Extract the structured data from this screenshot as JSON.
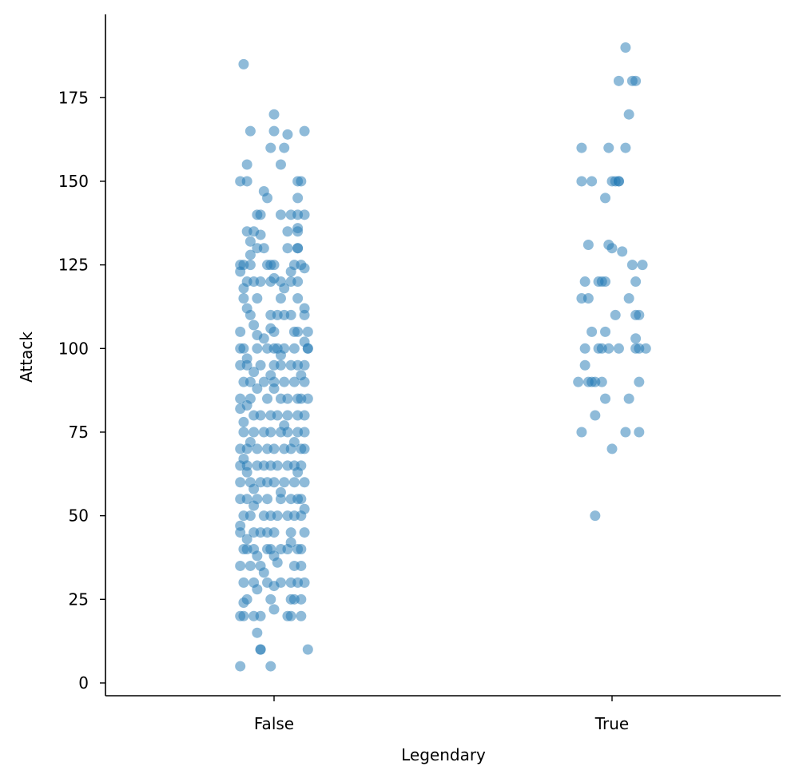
{
  "chart_data": {
    "type": "scatter",
    "subtype": "strip",
    "title": "",
    "xlabel": "Legendary",
    "ylabel": "Attack",
    "categories": [
      "False",
      "True"
    ],
    "yticks": [
      0,
      25,
      50,
      75,
      100,
      125,
      150,
      175
    ],
    "ylim": [
      -4,
      199
    ],
    "grid": false,
    "legend": null,
    "marker_color": "#1f77b4",
    "marker_alpha": 0.5,
    "series": [
      {
        "name": "False",
        "points": [
          [
            -0.09,
            185
          ],
          [
            0.0,
            170
          ],
          [
            -0.07,
            165
          ],
          [
            0.0,
            165
          ],
          [
            0.09,
            165
          ],
          [
            0.04,
            164
          ],
          [
            -0.01,
            160
          ],
          [
            0.03,
            160
          ],
          [
            -0.08,
            155
          ],
          [
            0.02,
            155
          ],
          [
            -0.1,
            150
          ],
          [
            -0.08,
            150
          ],
          [
            0.07,
            150
          ],
          [
            0.08,
            150
          ],
          [
            -0.03,
            147
          ],
          [
            -0.02,
            145
          ],
          [
            0.07,
            145
          ],
          [
            -0.05,
            140
          ],
          [
            -0.04,
            140
          ],
          [
            0.02,
            140
          ],
          [
            0.05,
            140
          ],
          [
            0.07,
            140
          ],
          [
            0.09,
            140
          ],
          [
            -0.08,
            135
          ],
          [
            -0.06,
            135
          ],
          [
            0.04,
            135
          ],
          [
            0.07,
            135
          ],
          [
            0.07,
            136
          ],
          [
            -0.07,
            132
          ],
          [
            -0.04,
            134
          ],
          [
            -0.05,
            130
          ],
          [
            -0.03,
            130
          ],
          [
            0.04,
            130
          ],
          [
            0.07,
            130
          ],
          [
            0.07,
            130
          ],
          [
            -0.07,
            128
          ],
          [
            -0.1,
            125
          ],
          [
            -0.09,
            125
          ],
          [
            -0.02,
            125
          ],
          [
            -0.01,
            125
          ],
          [
            0.0,
            125
          ],
          [
            0.06,
            125
          ],
          [
            0.08,
            125
          ],
          [
            -0.07,
            125
          ],
          [
            -0.1,
            123
          ],
          [
            0.05,
            123
          ],
          [
            0.09,
            124
          ],
          [
            -0.08,
            120
          ],
          [
            -0.06,
            120
          ],
          [
            -0.04,
            120
          ],
          [
            -0.01,
            120
          ],
          [
            0.02,
            120
          ],
          [
            0.05,
            120
          ],
          [
            0.07,
            120
          ],
          [
            -0.09,
            118
          ],
          [
            0.03,
            118
          ],
          [
            0.0,
            121
          ],
          [
            -0.09,
            115
          ],
          [
            -0.05,
            115
          ],
          [
            0.02,
            115
          ],
          [
            0.07,
            115
          ],
          [
            -0.08,
            112
          ],
          [
            0.09,
            112
          ],
          [
            -0.07,
            110
          ],
          [
            -0.01,
            110
          ],
          [
            0.01,
            110
          ],
          [
            0.03,
            110
          ],
          [
            0.05,
            110
          ],
          [
            0.09,
            110
          ],
          [
            -0.06,
            107
          ],
          [
            -0.01,
            106
          ],
          [
            0.0,
            105
          ],
          [
            0.06,
            105
          ],
          [
            0.07,
            105
          ],
          [
            -0.1,
            105
          ],
          [
            0.1,
            105
          ],
          [
            0.09,
            102
          ],
          [
            -0.05,
            104
          ],
          [
            -0.03,
            103
          ],
          [
            -0.1,
            100
          ],
          [
            -0.09,
            100
          ],
          [
            -0.05,
            100
          ],
          [
            -0.02,
            100
          ],
          [
            0.0,
            100
          ],
          [
            0.01,
            100
          ],
          [
            0.03,
            100
          ],
          [
            0.06,
            100
          ],
          [
            0.1,
            100
          ],
          [
            0.1,
            100
          ],
          [
            -0.08,
            97
          ],
          [
            0.02,
            98
          ],
          [
            -0.1,
            95
          ],
          [
            -0.08,
            95
          ],
          [
            -0.04,
            95
          ],
          [
            0.0,
            95
          ],
          [
            0.02,
            95
          ],
          [
            0.05,
            95
          ],
          [
            0.07,
            95
          ],
          [
            0.09,
            95
          ],
          [
            -0.06,
            93
          ],
          [
            -0.01,
            92
          ],
          [
            0.08,
            92
          ],
          [
            -0.09,
            90
          ],
          [
            -0.07,
            90
          ],
          [
            -0.03,
            90
          ],
          [
            0.0,
            90
          ],
          [
            0.03,
            90
          ],
          [
            0.06,
            90
          ],
          [
            0.09,
            90
          ],
          [
            -0.05,
            88
          ],
          [
            0.0,
            88
          ],
          [
            -0.1,
            85
          ],
          [
            -0.07,
            85
          ],
          [
            -0.02,
            85
          ],
          [
            0.02,
            85
          ],
          [
            0.04,
            85
          ],
          [
            0.07,
            85
          ],
          [
            0.08,
            85
          ],
          [
            0.1,
            85
          ],
          [
            -0.08,
            83
          ],
          [
            -0.1,
            82
          ],
          [
            -0.06,
            80
          ],
          [
            -0.04,
            80
          ],
          [
            -0.01,
            80
          ],
          [
            0.01,
            80
          ],
          [
            0.04,
            80
          ],
          [
            0.07,
            80
          ],
          [
            0.09,
            80
          ],
          [
            -0.09,
            78
          ],
          [
            0.03,
            77
          ],
          [
            -0.09,
            75
          ],
          [
            -0.06,
            75
          ],
          [
            -0.03,
            75
          ],
          [
            -0.01,
            75
          ],
          [
            0.02,
            75
          ],
          [
            0.04,
            75
          ],
          [
            0.07,
            75
          ],
          [
            0.09,
            75
          ],
          [
            -0.07,
            72
          ],
          [
            0.06,
            72
          ],
          [
            -0.1,
            70
          ],
          [
            -0.08,
            70
          ],
          [
            -0.05,
            70
          ],
          [
            -0.02,
            70
          ],
          [
            0.0,
            70
          ],
          [
            0.03,
            70
          ],
          [
            0.05,
            70
          ],
          [
            0.08,
            70
          ],
          [
            0.09,
            70
          ],
          [
            -0.09,
            67
          ],
          [
            -0.1,
            65
          ],
          [
            -0.08,
            65
          ],
          [
            -0.05,
            65
          ],
          [
            -0.03,
            65
          ],
          [
            -0.01,
            65
          ],
          [
            0.01,
            65
          ],
          [
            0.04,
            65
          ],
          [
            0.06,
            65
          ],
          [
            0.08,
            65
          ],
          [
            -0.08,
            63
          ],
          [
            0.07,
            63
          ],
          [
            -0.1,
            60
          ],
          [
            -0.07,
            60
          ],
          [
            -0.04,
            60
          ],
          [
            -0.02,
            60
          ],
          [
            0.0,
            60
          ],
          [
            0.03,
            60
          ],
          [
            0.06,
            60
          ],
          [
            0.09,
            60
          ],
          [
            -0.06,
            58
          ],
          [
            0.02,
            57
          ],
          [
            -0.1,
            55
          ],
          [
            -0.08,
            55
          ],
          [
            -0.05,
            55
          ],
          [
            -0.02,
            55
          ],
          [
            0.02,
            55
          ],
          [
            0.05,
            55
          ],
          [
            0.07,
            55
          ],
          [
            0.08,
            55
          ],
          [
            -0.06,
            53
          ],
          [
            0.09,
            52
          ],
          [
            -0.09,
            50
          ],
          [
            -0.07,
            50
          ],
          [
            -0.03,
            50
          ],
          [
            -0.01,
            50
          ],
          [
            0.01,
            50
          ],
          [
            0.04,
            50
          ],
          [
            0.06,
            50
          ],
          [
            0.08,
            50
          ],
          [
            -0.1,
            47
          ],
          [
            -0.1,
            45
          ],
          [
            -0.06,
            45
          ],
          [
            -0.04,
            45
          ],
          [
            -0.02,
            45
          ],
          [
            0.0,
            45
          ],
          [
            0.05,
            45
          ],
          [
            0.09,
            45
          ],
          [
            -0.08,
            43
          ],
          [
            0.05,
            42
          ],
          [
            -0.09,
            40
          ],
          [
            -0.08,
            40
          ],
          [
            -0.06,
            40
          ],
          [
            -0.02,
            40
          ],
          [
            -0.01,
            40
          ],
          [
            0.02,
            40
          ],
          [
            0.04,
            40
          ],
          [
            0.07,
            40
          ],
          [
            0.08,
            40
          ],
          [
            -0.05,
            38
          ],
          [
            0.0,
            38
          ],
          [
            -0.1,
            35
          ],
          [
            -0.07,
            35
          ],
          [
            -0.04,
            35
          ],
          [
            0.01,
            36
          ],
          [
            0.06,
            35
          ],
          [
            0.08,
            35
          ],
          [
            -0.03,
            33
          ],
          [
            -0.09,
            30
          ],
          [
            -0.06,
            30
          ],
          [
            -0.02,
            30
          ],
          [
            0.02,
            30
          ],
          [
            0.05,
            30
          ],
          [
            0.07,
            30
          ],
          [
            0.09,
            30
          ],
          [
            -0.05,
            28
          ],
          [
            0.0,
            29
          ],
          [
            -0.08,
            25
          ],
          [
            -0.09,
            24
          ],
          [
            0.05,
            25
          ],
          [
            0.06,
            25
          ],
          [
            0.08,
            25
          ],
          [
            -0.01,
            25
          ],
          [
            0.0,
            22
          ],
          [
            -0.1,
            20
          ],
          [
            -0.09,
            20
          ],
          [
            -0.06,
            20
          ],
          [
            -0.04,
            20
          ],
          [
            0.04,
            20
          ],
          [
            0.08,
            20
          ],
          [
            0.05,
            20
          ],
          [
            -0.05,
            15
          ],
          [
            -0.04,
            10
          ],
          [
            -0.04,
            10
          ],
          [
            0.1,
            10
          ],
          [
            -0.1,
            5
          ],
          [
            -0.01,
            5
          ]
        ]
      },
      {
        "name": "True",
        "points": [
          [
            0.04,
            190
          ],
          [
            0.02,
            180
          ],
          [
            0.06,
            180
          ],
          [
            0.07,
            180
          ],
          [
            0.05,
            170
          ],
          [
            -0.09,
            160
          ],
          [
            -0.01,
            160
          ],
          [
            0.04,
            160
          ],
          [
            -0.09,
            150
          ],
          [
            -0.06,
            150
          ],
          [
            0.0,
            150
          ],
          [
            0.01,
            150
          ],
          [
            0.02,
            150
          ],
          [
            0.02,
            150
          ],
          [
            -0.02,
            145
          ],
          [
            -0.07,
            131
          ],
          [
            -0.01,
            131
          ],
          [
            0.0,
            130
          ],
          [
            0.03,
            129
          ],
          [
            0.06,
            125
          ],
          [
            0.09,
            125
          ],
          [
            -0.08,
            120
          ],
          [
            -0.04,
            120
          ],
          [
            -0.03,
            120
          ],
          [
            -0.02,
            120
          ],
          [
            0.07,
            120
          ],
          [
            -0.09,
            115
          ],
          [
            -0.07,
            115
          ],
          [
            0.05,
            115
          ],
          [
            0.01,
            110
          ],
          [
            0.07,
            110
          ],
          [
            0.08,
            110
          ],
          [
            -0.06,
            105
          ],
          [
            -0.02,
            105
          ],
          [
            0.07,
            103
          ],
          [
            -0.08,
            100
          ],
          [
            -0.03,
            100
          ],
          [
            -0.04,
            100
          ],
          [
            -0.01,
            100
          ],
          [
            0.02,
            100
          ],
          [
            0.07,
            100
          ],
          [
            0.08,
            100
          ],
          [
            0.1,
            100
          ],
          [
            -0.08,
            95
          ],
          [
            -0.1,
            90
          ],
          [
            -0.07,
            90
          ],
          [
            -0.06,
            90
          ],
          [
            -0.05,
            90
          ],
          [
            -0.03,
            90
          ],
          [
            0.08,
            90
          ],
          [
            -0.02,
            85
          ],
          [
            0.05,
            85
          ],
          [
            -0.05,
            80
          ],
          [
            -0.09,
            75
          ],
          [
            0.04,
            75
          ],
          [
            0.08,
            75
          ],
          [
            0.0,
            70
          ],
          [
            -0.05,
            50
          ]
        ]
      }
    ]
  }
}
